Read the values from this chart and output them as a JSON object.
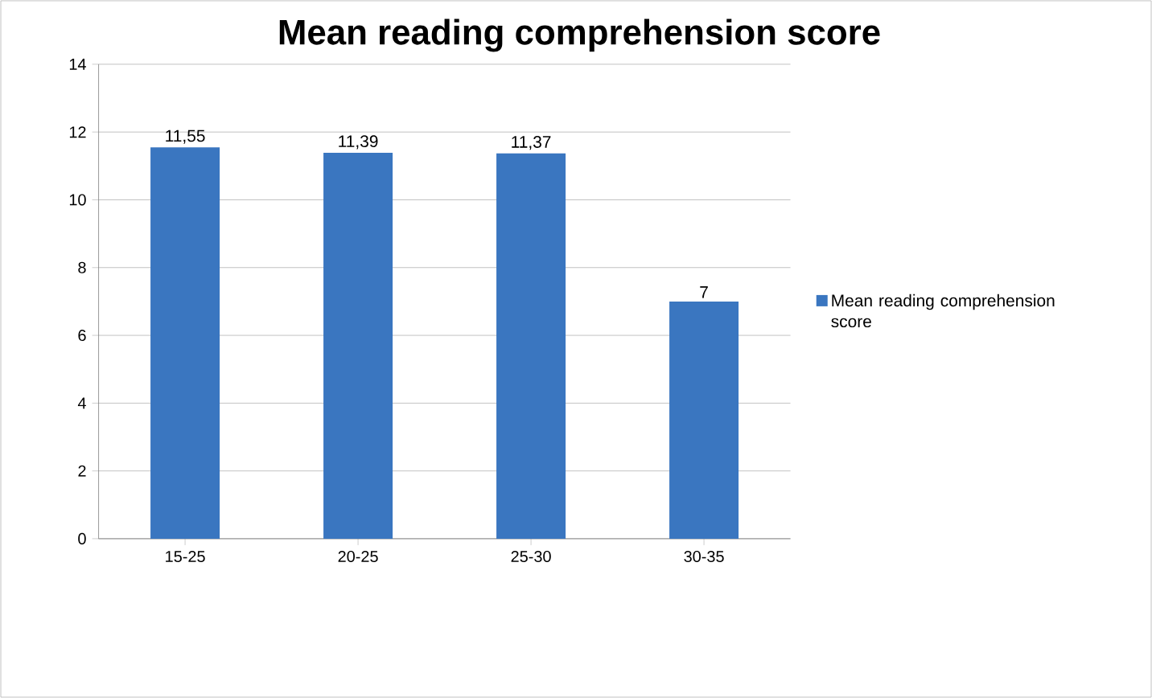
{
  "chart_data": {
    "type": "bar",
    "title": "Mean reading comprehension score",
    "categories": [
      "15-25",
      "20-25",
      "25-30",
      "30-35"
    ],
    "series": [
      {
        "name": "Mean reading comprehension score",
        "color": "#3a76c0",
        "values": [
          11.55,
          11.39,
          11.37,
          7
        ],
        "value_labels": [
          "11,55",
          "11,39",
          "11,37",
          "7"
        ]
      }
    ],
    "ylim": [
      0,
      14
    ],
    "yticks": [
      0,
      2,
      4,
      6,
      8,
      10,
      12,
      14
    ],
    "grid": "y",
    "legend": "right"
  }
}
